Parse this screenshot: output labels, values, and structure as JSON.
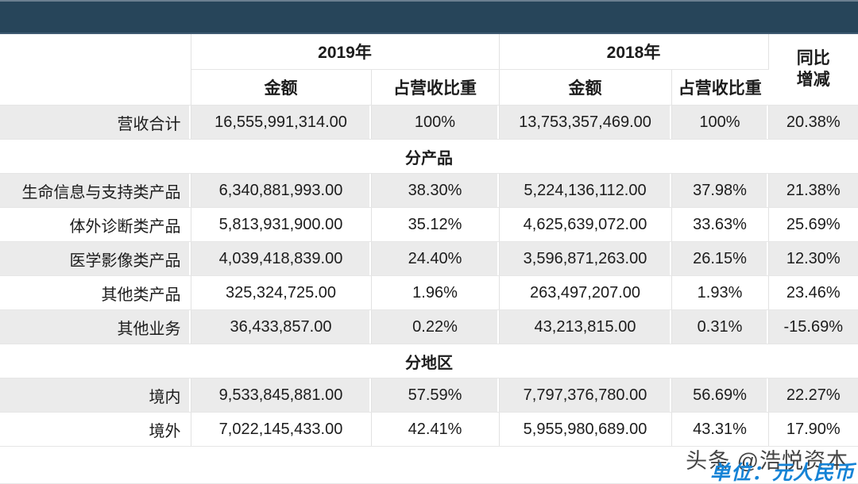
{
  "banner": {
    "color": "#27455a"
  },
  "table": {
    "headers": {
      "year_2019": "2019年",
      "year_2018": "2018年",
      "yoy_line1": "同比",
      "yoy_line2": "增减",
      "amount": "金额",
      "share": "占营收比重"
    },
    "rows": [
      {
        "type": "data",
        "label": "营收合计",
        "a2019": "16,555,991,314.00",
        "s2019": "100%",
        "a2018": "13,753,357,469.00",
        "s2018": "100%",
        "yoy": "20.38%"
      },
      {
        "type": "section",
        "label": "分产品"
      },
      {
        "type": "data",
        "label": "生命信息与支持类产品",
        "a2019": "6,340,881,993.00",
        "s2019": "38.30%",
        "a2018": "5,224,136,112.00",
        "s2018": "37.98%",
        "yoy": "21.38%"
      },
      {
        "type": "data",
        "label": "体外诊断类产品",
        "a2019": "5,813,931,900.00",
        "s2019": "35.12%",
        "a2018": "4,625,639,072.00",
        "s2018": "33.63%",
        "yoy": "25.69%"
      },
      {
        "type": "data",
        "label": "医学影像类产品",
        "a2019": "4,039,418,839.00",
        "s2019": "24.40%",
        "a2018": "3,596,871,263.00",
        "s2018": "26.15%",
        "yoy": "12.30%"
      },
      {
        "type": "data",
        "label": "其他类产品",
        "a2019": "325,324,725.00",
        "s2019": "1.96%",
        "a2018": "263,497,207.00",
        "s2018": "1.93%",
        "yoy": "23.46%"
      },
      {
        "type": "data",
        "label": "其他业务",
        "a2019": "36,433,857.00",
        "s2019": "0.22%",
        "a2018": "43,213,815.00",
        "s2018": "0.31%",
        "yoy": "-15.69%"
      },
      {
        "type": "section",
        "label": "分地区"
      },
      {
        "type": "data",
        "label": "境内",
        "a2019": "9,533,845,881.00",
        "s2019": "57.59%",
        "a2018": "7,797,376,780.00",
        "s2018": "56.69%",
        "yoy": "22.27%"
      },
      {
        "type": "data",
        "label": "境外",
        "a2019": "7,022,145,433.00",
        "s2019": "42.41%",
        "a2018": "5,955,980,689.00",
        "s2018": "43.31%",
        "yoy": "17.90%"
      }
    ]
  },
  "watermark": {
    "source": "头条 @浩悦资本",
    "unit": "单位：元人民币",
    "unit_color": "#1583d6"
  },
  "chart_data": {
    "type": "table",
    "columns": [
      "",
      "2019年 金额",
      "2019年 占营收比重",
      "2018年 金额",
      "2018年 占营收比重",
      "同比增减"
    ],
    "sections": [
      {
        "name": "",
        "rows": [
          [
            "营收合计",
            16555991314.0,
            "100%",
            13753357469.0,
            "100%",
            "20.38%"
          ]
        ]
      },
      {
        "name": "分产品",
        "rows": [
          [
            "生命信息与支持类产品",
            6340881993.0,
            "38.30%",
            5224136112.0,
            "37.98%",
            "21.38%"
          ],
          [
            "体外诊断类产品",
            5813931900.0,
            "35.12%",
            4625639072.0,
            "33.63%",
            "25.69%"
          ],
          [
            "医学影像类产品",
            4039418839.0,
            "24.40%",
            3596871263.0,
            "26.15%",
            "12.30%"
          ],
          [
            "其他类产品",
            325324725.0,
            "1.96%",
            263497207.0,
            "1.93%",
            "23.46%"
          ],
          [
            "其他业务",
            36433857.0,
            "0.22%",
            43213815.0,
            "0.31%",
            "-15.69%"
          ]
        ]
      },
      {
        "name": "分地区",
        "rows": [
          [
            "境内",
            9533845881.0,
            "57.59%",
            7797376780.0,
            "56.69%",
            "22.27%"
          ],
          [
            "境外",
            7022145433.0,
            "42.41%",
            5955980689.0,
            "43.31%",
            "17.90%"
          ]
        ]
      }
    ]
  }
}
